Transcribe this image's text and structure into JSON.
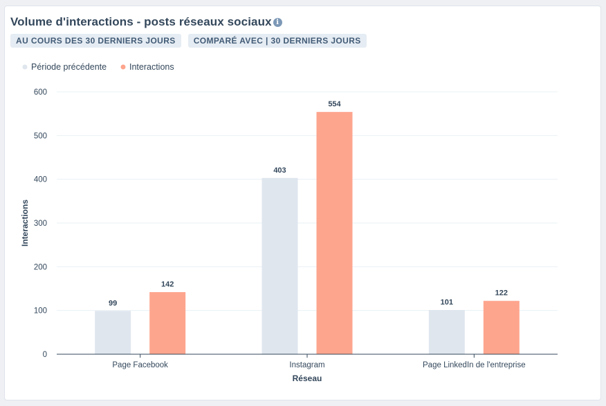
{
  "header": {
    "title": "Volume d'interactions - posts réseaux sociaux",
    "info_icon": "info-icon",
    "period_pill": "AU COURS DES 30 DERNIERS JOURS",
    "compare_pill": "COMPARÉ AVEC | 30 DERNIERS JOURS"
  },
  "colors": {
    "previous": "#dfe6ee",
    "current": "#fea58e",
    "text": "#33475b",
    "grid": "#eaf0f6",
    "axis": "#33475b"
  },
  "chart_data": {
    "type": "bar",
    "title": "Volume d'interactions - posts réseaux sociaux",
    "xlabel": "Réseau",
    "ylabel": "Interactions",
    "categories": [
      "Page Facebook",
      "Instagram",
      "Page LinkedIn de l'entreprise"
    ],
    "series": [
      {
        "name": "Période précédente",
        "values": [
          99,
          403,
          101
        ]
      },
      {
        "name": "Interactions",
        "values": [
          142,
          554,
          122
        ]
      }
    ],
    "ylim": [
      0,
      600
    ],
    "yticks": [
      0,
      100,
      200,
      300,
      400,
      500,
      600
    ],
    "grid": true,
    "legend_position": "top-left"
  }
}
